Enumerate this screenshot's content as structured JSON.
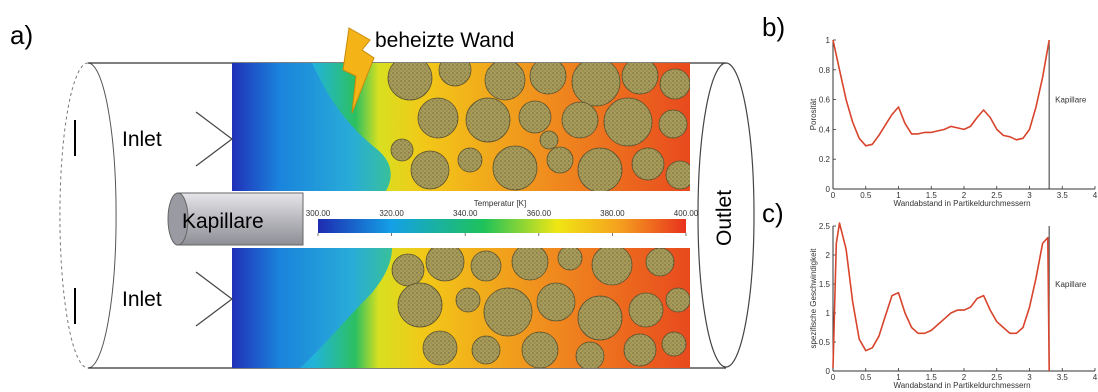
{
  "panel_labels": {
    "a": "a)",
    "b": "b)",
    "c": "c)"
  },
  "labels": {
    "heated_wall": "beheizte Wand",
    "inlet_top": "Inlet",
    "inlet_bottom": "Inlet",
    "capillary": "Kapillare",
    "outlet": "Outlet"
  },
  "colorbar": {
    "title": "Temperatur [K]",
    "ticks": [
      "300.00",
      "320.00",
      "340.00",
      "360.00",
      "380.00",
      "400.00"
    ],
    "colors": [
      "#1e2bb0",
      "#14a0e6",
      "#1ec25a",
      "#f0e614",
      "#f5a01e",
      "#e8321e"
    ]
  },
  "chart_data": [
    {
      "type": "line",
      "xlabel": "Wandabstand in Partikeldurchmessern",
      "ylabel": "Porosität",
      "xlim": [
        0,
        4
      ],
      "ylim": [
        0,
        1
      ],
      "x_ticks": [
        "0",
        "0.5",
        "1",
        "1.5",
        "2",
        "2.5",
        "3",
        "3.5",
        "4"
      ],
      "y_ticks": [
        "0",
        "0.2",
        "0.4",
        "0.6",
        "0.8",
        "1"
      ],
      "vline_x": 3.3,
      "vline_label": "Kapillare",
      "line_color": "#d8442c",
      "series": [
        {
          "x": [
            0,
            0.1,
            0.2,
            0.3,
            0.4,
            0.5,
            0.6,
            0.7,
            0.8,
            0.9,
            1.0,
            1.1,
            1.2,
            1.3,
            1.4,
            1.5,
            1.6,
            1.7,
            1.8,
            1.9,
            2.0,
            2.1,
            2.2,
            2.3,
            2.4,
            2.5,
            2.6,
            2.7,
            2.8,
            2.9,
            3.0,
            3.1,
            3.2,
            3.3
          ],
          "y": [
            1.0,
            0.8,
            0.6,
            0.45,
            0.34,
            0.29,
            0.3,
            0.36,
            0.43,
            0.5,
            0.55,
            0.44,
            0.37,
            0.37,
            0.38,
            0.38,
            0.39,
            0.4,
            0.42,
            0.41,
            0.4,
            0.42,
            0.48,
            0.53,
            0.48,
            0.4,
            0.36,
            0.35,
            0.33,
            0.34,
            0.4,
            0.55,
            0.75,
            1.0
          ]
        }
      ]
    },
    {
      "type": "line",
      "xlabel": "Wandabstand in Partikeldurchmessern",
      "ylabel": "spezifische Geschwindigkeit",
      "xlim": [
        0,
        4
      ],
      "ylim": [
        0,
        2.5
      ],
      "x_ticks": [
        "0",
        "0.5",
        "1",
        "1.5",
        "2",
        "2.5",
        "3",
        "3.5",
        "4"
      ],
      "y_ticks": [
        "0",
        "0.5",
        "1",
        "1.5",
        "2",
        "2.5"
      ],
      "vline_x": 3.3,
      "vline_label": "Kapillare",
      "line_color": "#d8442c",
      "series": [
        {
          "x": [
            0,
            0.05,
            0.1,
            0.2,
            0.3,
            0.4,
            0.5,
            0.6,
            0.7,
            0.8,
            0.9,
            1.0,
            1.1,
            1.2,
            1.3,
            1.4,
            1.5,
            1.6,
            1.7,
            1.8,
            1.9,
            2.0,
            2.1,
            2.2,
            2.3,
            2.4,
            2.5,
            2.6,
            2.7,
            2.8,
            2.9,
            3.0,
            3.1,
            3.2,
            3.28,
            3.3
          ],
          "y": [
            0.05,
            2.2,
            2.55,
            2.1,
            1.2,
            0.55,
            0.35,
            0.4,
            0.6,
            0.95,
            1.3,
            1.35,
            1.0,
            0.75,
            0.65,
            0.65,
            0.7,
            0.8,
            0.9,
            1.0,
            1.05,
            1.05,
            1.1,
            1.25,
            1.3,
            1.05,
            0.85,
            0.75,
            0.65,
            0.65,
            0.75,
            1.1,
            1.6,
            2.2,
            2.3,
            0.0
          ]
        }
      ]
    }
  ]
}
